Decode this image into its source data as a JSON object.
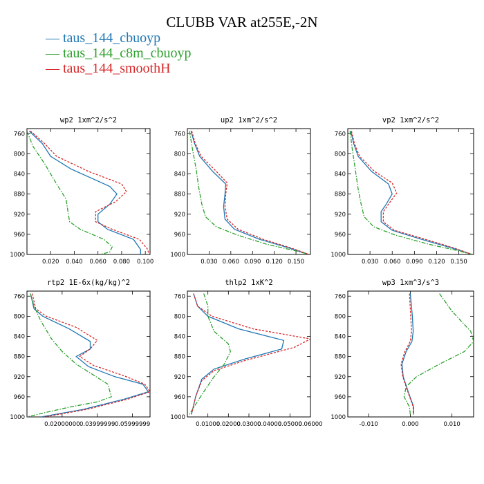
{
  "title": "CLUBB VAR at255E,-2N",
  "legend": [
    {
      "label": "taus_144_cbuoyp",
      "color": "#1f77b4"
    },
    {
      "label": "taus_144_c8m_cbuoyp",
      "color": "#2ca02c"
    },
    {
      "label": "taus_144_smoothH",
      "color": "#d62728"
    }
  ],
  "chart_data": [
    {
      "type": "line",
      "title": "wp2  1xm^2/s^2",
      "xlim": [
        0.0,
        0.104
      ],
      "ylim": [
        1000,
        750
      ],
      "yticks": [
        760,
        800,
        840,
        880,
        920,
        960,
        1000
      ],
      "xticks": [
        0.02,
        0.04,
        0.06,
        0.08,
        0.1
      ],
      "xtick_labels": [
        "0.020",
        "0.040",
        "0.060",
        "0.080",
        "0.100"
      ],
      "series": [
        {
          "name": "taus_144_cbuoyp",
          "color": "#1f77b4",
          "dash": "solid",
          "x": [
            0.002,
            0.013,
            0.02,
            0.037,
            0.07,
            0.076,
            0.07,
            0.06,
            0.06,
            0.068,
            0.09,
            0.096,
            0.096
          ],
          "y": [
            755,
            780,
            805,
            830,
            865,
            880,
            900,
            920,
            935,
            950,
            970,
            990,
            1000
          ]
        },
        {
          "name": "taus_144_c8m_cbuoyp",
          "color": "#2ca02c",
          "dash": "dashdot",
          "x": [
            0.0,
            0.005,
            0.015,
            0.025,
            0.033,
            0.035,
            0.036,
            0.045,
            0.065,
            0.072,
            0.07,
            0.062
          ],
          "y": [
            755,
            785,
            820,
            860,
            890,
            920,
            935,
            950,
            970,
            985,
            995,
            1000
          ]
        },
        {
          "name": "taus_144_smoothH",
          "color": "#d62728",
          "dash": "dash",
          "x": [
            0.003,
            0.015,
            0.025,
            0.052,
            0.08,
            0.084,
            0.075,
            0.058,
            0.058,
            0.072,
            0.095,
            0.102,
            0.103
          ],
          "y": [
            755,
            780,
            805,
            835,
            860,
            875,
            895,
            915,
            935,
            950,
            970,
            990,
            1000
          ]
        }
      ]
    },
    {
      "type": "line",
      "title": "up2  1xm^2/s^2",
      "xlim": [
        0.0,
        0.17
      ],
      "ylim": [
        1000,
        750
      ],
      "yticks": [
        760,
        800,
        840,
        880,
        920,
        960,
        1000
      ],
      "xticks": [
        0.03,
        0.06,
        0.09,
        0.12,
        0.15
      ],
      "xtick_labels": [
        "0.030",
        "0.060",
        "0.090",
        "0.120",
        "0.150"
      ],
      "series": [
        {
          "name": "taus_144_cbuoyp",
          "color": "#1f77b4",
          "dash": "solid",
          "x": [
            0.005,
            0.01,
            0.017,
            0.035,
            0.053,
            0.052,
            0.05,
            0.052,
            0.065,
            0.1,
            0.14,
            0.168
          ],
          "y": [
            755,
            780,
            805,
            835,
            860,
            880,
            905,
            930,
            950,
            970,
            987,
            1000
          ]
        },
        {
          "name": "taus_144_c8m_cbuoyp",
          "color": "#2ca02c",
          "dash": "dashdot",
          "x": [
            0.003,
            0.007,
            0.012,
            0.016,
            0.02,
            0.025,
            0.04,
            0.07,
            0.11,
            0.15,
            0.168
          ],
          "y": [
            755,
            790,
            830,
            870,
            900,
            925,
            945,
            962,
            980,
            993,
            1000
          ]
        },
        {
          "name": "taus_144_smoothH",
          "color": "#d62728",
          "dash": "dash",
          "x": [
            0.006,
            0.011,
            0.019,
            0.04,
            0.055,
            0.053,
            0.052,
            0.055,
            0.07,
            0.105,
            0.143,
            0.168
          ],
          "y": [
            755,
            780,
            805,
            835,
            858,
            880,
            905,
            930,
            950,
            970,
            987,
            1000
          ]
        }
      ]
    },
    {
      "type": "line",
      "title": "vp2  1xm^2/s^2",
      "xlim": [
        0.0,
        0.17
      ],
      "ylim": [
        1000,
        750
      ],
      "yticks": [
        760,
        800,
        840,
        880,
        920,
        960,
        1000
      ],
      "xticks": [
        0.03,
        0.06,
        0.09,
        0.12,
        0.15
      ],
      "xtick_labels": [
        "0.030",
        "0.060",
        "0.090",
        "0.120",
        "0.150"
      ],
      "series": [
        {
          "name": "taus_144_cbuoyp",
          "color": "#1f77b4",
          "dash": "solid",
          "x": [
            0.004,
            0.008,
            0.014,
            0.032,
            0.055,
            0.06,
            0.052,
            0.045,
            0.045,
            0.06,
            0.1,
            0.14,
            0.168
          ],
          "y": [
            755,
            780,
            805,
            835,
            860,
            880,
            900,
            915,
            935,
            952,
            970,
            987,
            1000
          ]
        },
        {
          "name": "taus_144_c8m_cbuoyp",
          "color": "#2ca02c",
          "dash": "dashdot",
          "x": [
            0.003,
            0.006,
            0.01,
            0.014,
            0.018,
            0.022,
            0.035,
            0.065,
            0.11,
            0.15,
            0.168
          ],
          "y": [
            755,
            790,
            830,
            870,
            900,
            925,
            945,
            962,
            980,
            993,
            1000
          ]
        },
        {
          "name": "taus_144_smoothH",
          "color": "#d62728",
          "dash": "dash",
          "x": [
            0.005,
            0.009,
            0.016,
            0.036,
            0.06,
            0.066,
            0.055,
            0.048,
            0.048,
            0.063,
            0.105,
            0.143,
            0.168
          ],
          "y": [
            755,
            780,
            805,
            835,
            858,
            878,
            900,
            915,
            935,
            952,
            970,
            987,
            1000
          ]
        }
      ]
    },
    {
      "type": "line",
      "title": "rtp2  1E-6x(kg/kg)^2",
      "xlim": [
        0.0,
        0.07
      ],
      "ylim": [
        1000,
        750
      ],
      "yticks": [
        760,
        800,
        840,
        880,
        920,
        960,
        1000
      ],
      "xticks": [
        0.02,
        0.04,
        0.06
      ],
      "xtick_labels": [
        "0.02000000",
        "0.03999999",
        "0.05999999"
      ],
      "series": [
        {
          "name": "taus_144_cbuoyp",
          "color": "#1f77b4",
          "dash": "solid",
          "x": [
            0.002,
            0.004,
            0.009,
            0.024,
            0.036,
            0.036,
            0.028,
            0.035,
            0.05,
            0.066,
            0.069,
            0.055,
            0.032,
            0.008
          ],
          "y": [
            755,
            785,
            800,
            825,
            850,
            865,
            880,
            900,
            920,
            935,
            950,
            965,
            985,
            1000
          ]
        },
        {
          "name": "taus_144_c8m_cbuoyp",
          "color": "#2ca02c",
          "dash": "dashdot",
          "x": [
            0.002,
            0.004,
            0.008,
            0.014,
            0.02,
            0.028,
            0.037,
            0.046,
            0.048,
            0.04,
            0.025,
            0.012,
            0.0
          ],
          "y": [
            755,
            780,
            810,
            845,
            870,
            895,
            915,
            935,
            960,
            970,
            980,
            990,
            1000
          ]
        },
        {
          "name": "taus_144_smoothH",
          "color": "#d62728",
          "dash": "dash",
          "x": [
            0.003,
            0.005,
            0.011,
            0.028,
            0.04,
            0.036,
            0.03,
            0.038,
            0.055,
            0.067,
            0.07,
            0.057,
            0.034,
            0.01
          ],
          "y": [
            755,
            785,
            800,
            822,
            848,
            865,
            880,
            898,
            918,
            935,
            950,
            965,
            985,
            1000
          ]
        }
      ]
    },
    {
      "type": "line",
      "title": "thlp2  1xK^2",
      "xlim": [
        0.0,
        0.06
      ],
      "ylim": [
        1000,
        750
      ],
      "yticks": [
        760,
        800,
        840,
        880,
        920,
        960,
        1000
      ],
      "xticks": [
        0.01,
        0.02,
        0.03,
        0.04,
        0.05,
        0.06
      ],
      "xtick_labels": [
        "0.01000",
        "0.02000",
        "0.03000",
        "0.04000",
        "0.05000",
        "0.06000"
      ],
      "series": [
        {
          "name": "taus_144_cbuoyp",
          "color": "#1f77b4",
          "dash": "solid",
          "x": [
            0.003,
            0.005,
            0.01,
            0.025,
            0.047,
            0.046,
            0.028,
            0.013,
            0.007,
            0.004,
            0.002
          ],
          "y": [
            755,
            780,
            800,
            825,
            848,
            865,
            885,
            905,
            925,
            960,
            995
          ]
        },
        {
          "name": "taus_144_c8m_cbuoyp",
          "color": "#2ca02c",
          "dash": "dashdot",
          "x": [
            0.008,
            0.01,
            0.01,
            0.013,
            0.02,
            0.021,
            0.018,
            0.013,
            0.008,
            0.004,
            0.001
          ],
          "y": [
            755,
            780,
            800,
            830,
            855,
            870,
            895,
            920,
            950,
            975,
            995
          ]
        },
        {
          "name": "taus_144_smoothH",
          "color": "#d62728",
          "dash": "dash",
          "x": [
            0.003,
            0.005,
            0.012,
            0.032,
            0.06,
            0.052,
            0.028,
            0.013,
            0.007,
            0.004,
            0.002
          ],
          "y": [
            755,
            780,
            800,
            825,
            845,
            862,
            888,
            908,
            928,
            960,
            995
          ]
        }
      ]
    },
    {
      "type": "line",
      "title": "wp3  1xm^3/s^3",
      "xlim": [
        -0.015,
        0.0152
      ],
      "ylim": [
        1000,
        750
      ],
      "yticks": [
        760,
        800,
        840,
        880,
        920,
        960,
        1000
      ],
      "xticks": [
        -0.01,
        0.0,
        0.01
      ],
      "xtick_labels": [
        "-0.010",
        "0.000",
        "0.010"
      ],
      "series": [
        {
          "name": "taus_144_cbuoyp",
          "color": "#1f77b4",
          "dash": "solid",
          "x": [
            0.0,
            0.0005,
            0.0007,
            0.0004,
            -0.001,
            -0.002,
            -0.0017,
            -0.0005,
            0.0008,
            0.0008
          ],
          "y": [
            755,
            800,
            830,
            850,
            870,
            895,
            920,
            950,
            980,
            995
          ]
        },
        {
          "name": "taus_144_c8m_cbuoyp",
          "color": "#2ca02c",
          "dash": "dashdot",
          "x": [
            0.007,
            0.01,
            0.0145,
            0.0152,
            0.013,
            0.007,
            0.0015,
            -0.001,
            -0.0015,
            -0.0002,
            0.0
          ],
          "y": [
            755,
            790,
            830,
            850,
            870,
            895,
            920,
            940,
            960,
            980,
            995
          ]
        },
        {
          "name": "taus_144_smoothH",
          "color": "#d62728",
          "dash": "dash",
          "x": [
            -0.0002,
            0.0001,
            0.0003,
            0.0,
            -0.0013,
            -0.0022,
            -0.0018,
            -0.0006,
            0.0007,
            0.0007
          ],
          "y": [
            755,
            800,
            830,
            850,
            870,
            895,
            920,
            950,
            980,
            995
          ]
        }
      ]
    }
  ]
}
